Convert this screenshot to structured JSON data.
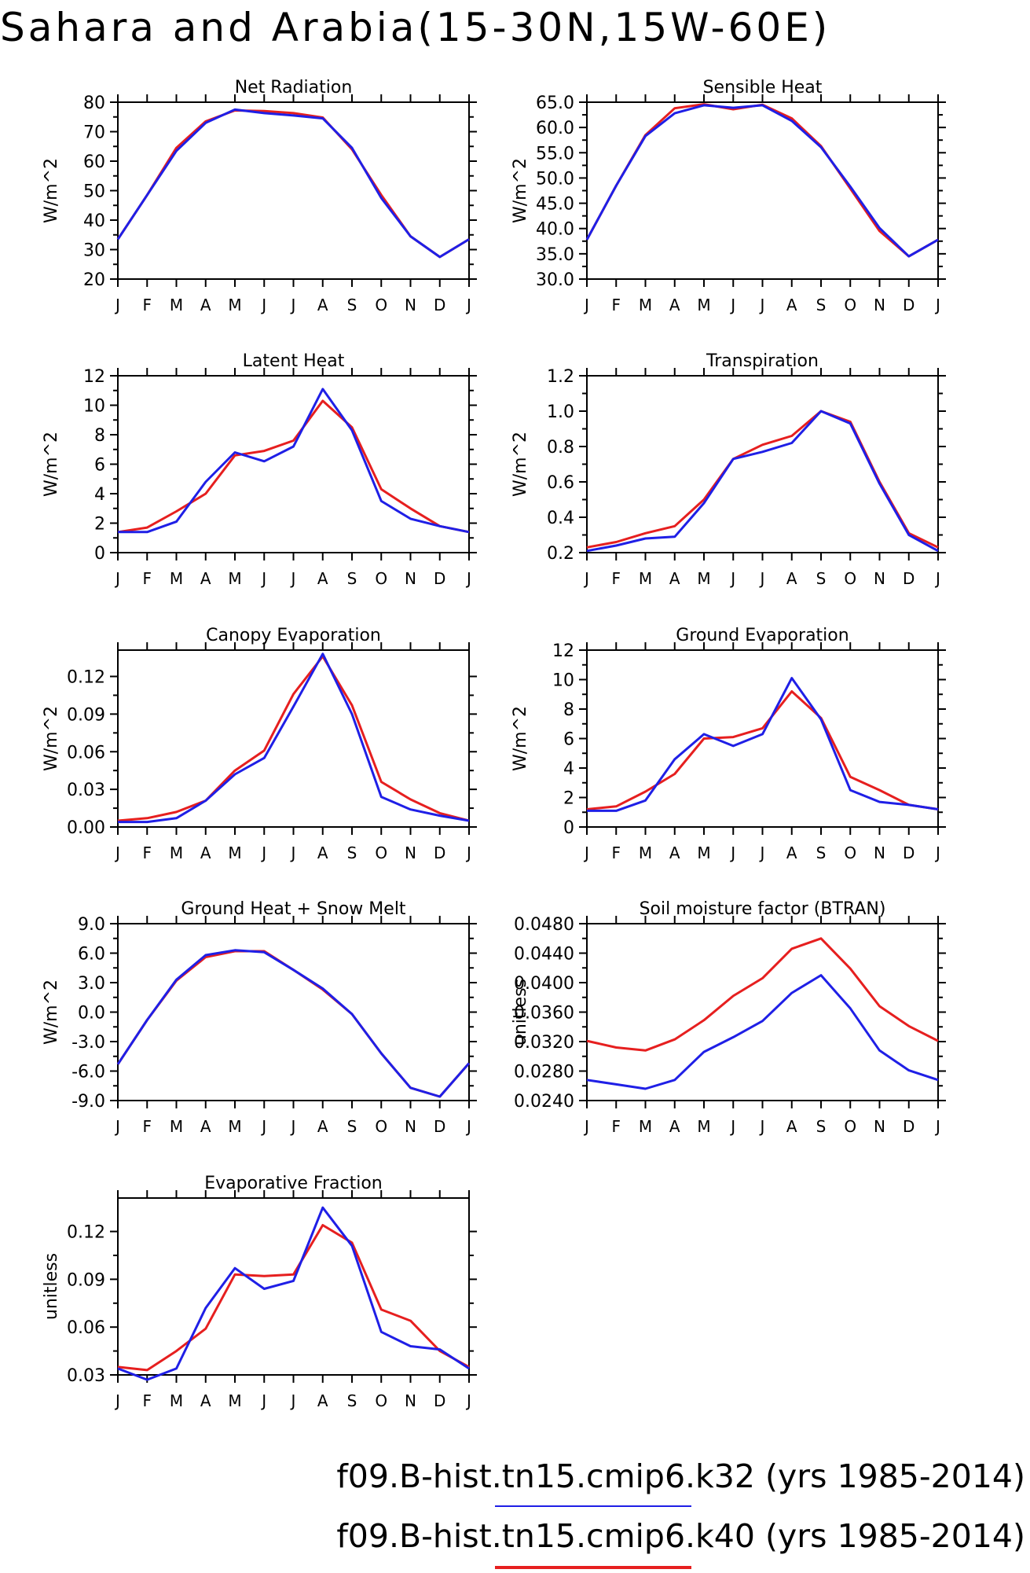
{
  "title": "Sahara and Arabia(15-30N,15W-60E)",
  "months": [
    "J",
    "F",
    "M",
    "A",
    "M",
    "J",
    "J",
    "A",
    "S",
    "O",
    "N",
    "D",
    "J"
  ],
  "colors": {
    "k32": "#1f1fe6",
    "k40": "#e61f1f"
  },
  "legend": [
    {
      "text": "f09.B-hist.tn15.cmip6.k32 (yrs 1985-2014)",
      "color": "#1f1fe6"
    },
    {
      "text": "f09.B-hist.tn15.cmip6.k40 (yrs 1985-2014)",
      "color": "#e61f1f"
    }
  ],
  "chart_data": [
    {
      "type": "line",
      "title": "Net Radiation",
      "ylabel": "W/m^2",
      "ylim": [
        20,
        80
      ],
      "ticks": [
        20,
        30,
        40,
        50,
        60,
        70,
        80
      ],
      "tick_format": 0,
      "series": [
        {
          "name": "k32",
          "values": [
            33.5,
            48.5,
            63.5,
            73,
            77.5,
            76.3,
            75.5,
            74.5,
            64.5,
            47.5,
            34.5,
            27.5,
            33.5
          ]
        },
        {
          "name": "k40",
          "values": [
            33.5,
            48.5,
            64.5,
            73.5,
            77.2,
            77,
            76.3,
            74.8,
            64,
            48.5,
            34.5,
            27.5,
            33.5
          ]
        }
      ]
    },
    {
      "type": "line",
      "title": "Sensible Heat",
      "ylabel": "W/m^2",
      "ylim": [
        30,
        65
      ],
      "ticks": [
        30,
        35,
        40,
        45,
        50,
        55,
        60,
        65
      ],
      "tick_format": 1,
      "series": [
        {
          "name": "k32",
          "values": [
            37.8,
            48.5,
            58.3,
            62.8,
            64.4,
            63.9,
            64.4,
            61.3,
            56.1,
            48.3,
            40.1,
            34.5,
            37.8
          ]
        },
        {
          "name": "k40",
          "values": [
            37.8,
            48.5,
            58.5,
            63.8,
            64.6,
            63.6,
            64.5,
            61.8,
            56.3,
            47.9,
            39.5,
            34.5,
            37.8
          ]
        }
      ]
    },
    {
      "type": "line",
      "title": "Latent Heat",
      "ylabel": "W/m^2",
      "ylim": [
        0,
        12
      ],
      "ticks": [
        0,
        2,
        4,
        6,
        8,
        10,
        12
      ],
      "tick_format": 0,
      "series": [
        {
          "name": "k32",
          "values": [
            1.4,
            1.4,
            2.1,
            4.8,
            6.8,
            6.2,
            7.2,
            11.1,
            8.3,
            3.5,
            2.3,
            1.8,
            1.4
          ]
        },
        {
          "name": "k40",
          "values": [
            1.4,
            1.7,
            2.8,
            4.0,
            6.6,
            6.9,
            7.6,
            10.3,
            8.5,
            4.3,
            3.0,
            1.8,
            1.4
          ]
        }
      ]
    },
    {
      "type": "line",
      "title": "Transpiration",
      "ylabel": "W/m^2",
      "ylim": [
        0.2,
        1.2
      ],
      "ticks": [
        0.2,
        0.4,
        0.6,
        0.8,
        1.0,
        1.2
      ],
      "tick_format": 1,
      "series": [
        {
          "name": "k32",
          "values": [
            0.21,
            0.24,
            0.28,
            0.29,
            0.48,
            0.73,
            0.77,
            0.82,
            1.0,
            0.93,
            0.59,
            0.3,
            0.21
          ]
        },
        {
          "name": "k40",
          "values": [
            0.23,
            0.26,
            0.31,
            0.35,
            0.5,
            0.73,
            0.81,
            0.86,
            1.0,
            0.94,
            0.6,
            0.31,
            0.23
          ]
        }
      ]
    },
    {
      "type": "line",
      "title": "Canopy Evaporation",
      "ylabel": "W/m^2",
      "ylim": [
        0,
        0.141
      ],
      "ticks": [
        0,
        0.03,
        0.06,
        0.09,
        0.12
      ],
      "tick_format": 2,
      "series": [
        {
          "name": "k32",
          "values": [
            0.004,
            0.004,
            0.007,
            0.021,
            0.042,
            0.055,
            0.096,
            0.138,
            0.09,
            0.024,
            0.014,
            0.009,
            0.005
          ]
        },
        {
          "name": "k40",
          "values": [
            0.005,
            0.007,
            0.012,
            0.021,
            0.045,
            0.061,
            0.106,
            0.136,
            0.097,
            0.036,
            0.022,
            0.011,
            0.005
          ]
        }
      ]
    },
    {
      "type": "line",
      "title": "Ground Evaporation",
      "ylabel": "W/m^2",
      "ylim": [
        0,
        12
      ],
      "ticks": [
        0,
        2,
        4,
        6,
        8,
        10,
        12
      ],
      "tick_format": 0,
      "series": [
        {
          "name": "k32",
          "values": [
            1.1,
            1.1,
            1.8,
            4.6,
            6.3,
            5.5,
            6.3,
            10.1,
            7.3,
            2.5,
            1.7,
            1.5,
            1.2
          ]
        },
        {
          "name": "k40",
          "values": [
            1.2,
            1.4,
            2.4,
            3.6,
            6.0,
            6.1,
            6.7,
            9.2,
            7.4,
            3.4,
            2.5,
            1.5,
            1.2
          ]
        }
      ]
    },
    {
      "type": "line",
      "title": "Ground Heat + Snow Melt",
      "ylabel": "W/m^2",
      "ylim": [
        -9,
        9
      ],
      "ticks": [
        -9,
        -6,
        -3,
        0,
        3,
        6,
        9
      ],
      "tick_format": 1,
      "series": [
        {
          "name": "k32",
          "values": [
            -5.3,
            -0.8,
            3.3,
            5.8,
            6.3,
            6.1,
            4.3,
            2.4,
            -0.2,
            -4.2,
            -7.7,
            -8.6,
            -5.2
          ]
        },
        {
          "name": "k40",
          "values": [
            -5.3,
            -0.8,
            3.2,
            5.6,
            6.2,
            6.2,
            4.3,
            2.3,
            -0.2,
            -4.2,
            -7.7,
            -8.6,
            -5.2
          ]
        }
      ]
    },
    {
      "type": "line",
      "title": "Soil moisture factor (BTRAN)",
      "ylabel": "unitless",
      "ylim": [
        0.024,
        0.048
      ],
      "ticks": [
        0.024,
        0.028,
        0.032,
        0.036,
        0.04,
        0.044,
        0.048
      ],
      "tick_format": 4,
      "series": [
        {
          "name": "k32",
          "values": [
            0.0268,
            0.0262,
            0.0256,
            0.0268,
            0.0306,
            0.0326,
            0.0348,
            0.0386,
            0.041,
            0.0365,
            0.0308,
            0.0281,
            0.0268
          ]
        },
        {
          "name": "k40",
          "values": [
            0.0321,
            0.0312,
            0.0308,
            0.0323,
            0.0349,
            0.0382,
            0.0406,
            0.0446,
            0.046,
            0.0419,
            0.0368,
            0.0341,
            0.0321
          ]
        }
      ]
    },
    {
      "type": "line",
      "title": "Evaporative Fraction",
      "ylabel": "unitless",
      "ylim": [
        0.03,
        0.141
      ],
      "ticks": [
        0.03,
        0.06,
        0.09,
        0.12
      ],
      "tick_format": 2,
      "series": [
        {
          "name": "k32",
          "values": [
            0.034,
            0.027,
            0.034,
            0.072,
            0.097,
            0.084,
            0.089,
            0.135,
            0.111,
            0.057,
            0.048,
            0.046,
            0.034
          ]
        },
        {
          "name": "k40",
          "values": [
            0.035,
            0.033,
            0.045,
            0.059,
            0.093,
            0.092,
            0.093,
            0.124,
            0.113,
            0.071,
            0.064,
            0.045,
            0.035
          ]
        }
      ]
    }
  ]
}
